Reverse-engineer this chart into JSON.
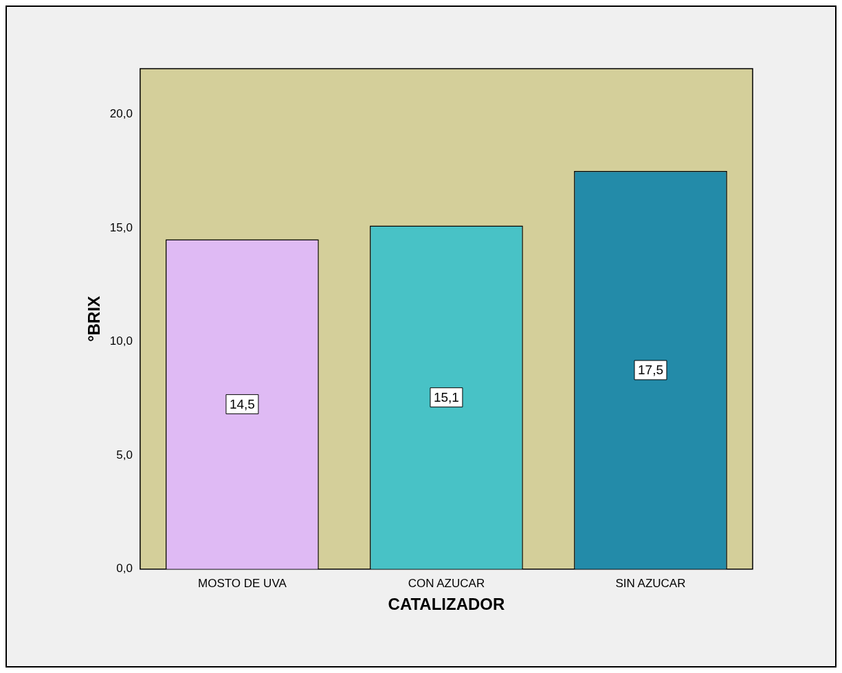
{
  "chart_data": {
    "type": "bar",
    "xlabel": "CATALIZADOR",
    "ylabel": "°BRIX",
    "categories": [
      "MOSTO DE UVA",
      "CON AZUCAR",
      "SIN AZUCAR"
    ],
    "values": [
      14.5,
      15.1,
      17.5
    ],
    "colors": [
      "#dfbaf4",
      "#48c2c6",
      "#238ba9"
    ],
    "value_labels": [
      "14,5",
      "15,1",
      "17,5"
    ],
    "ylim": [
      0,
      22
    ],
    "yticks": [
      {
        "value": 0,
        "label": "0,0"
      },
      {
        "value": 5,
        "label": "5,0"
      },
      {
        "value": 10,
        "label": "10,0"
      },
      {
        "value": 15,
        "label": "15,0"
      },
      {
        "value": 20,
        "label": "20,0"
      }
    ]
  }
}
